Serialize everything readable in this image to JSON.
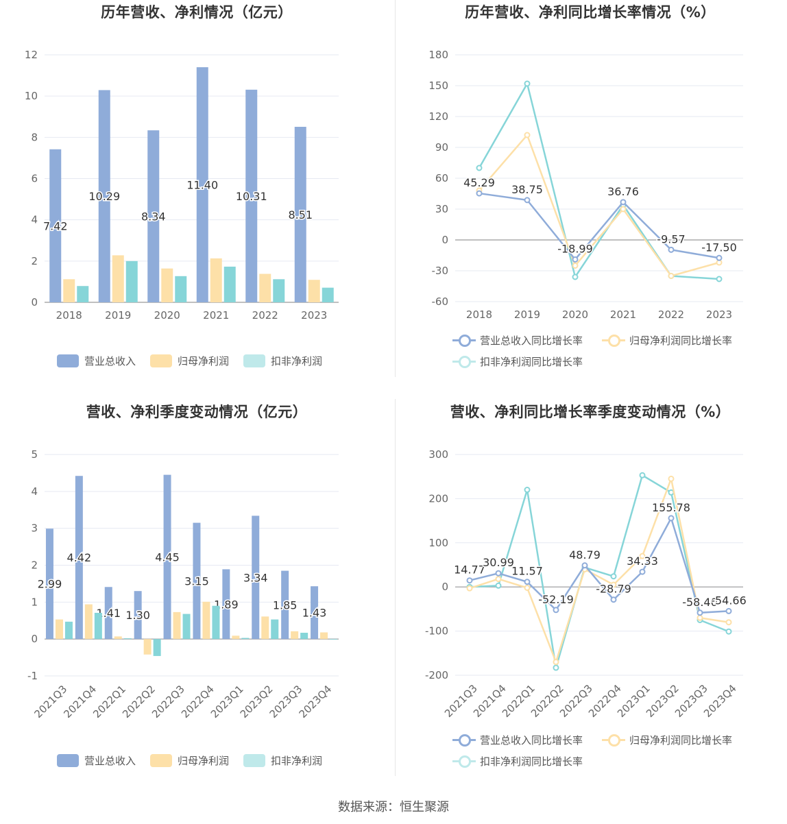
{
  "colors": {
    "revenue": "#8facd9",
    "net_profit": "#fde0a8",
    "deducted_profit": "#7fd3d6",
    "revenue_bar": "#8facd9",
    "net_bar": "#fde0a8",
    "ded_bar": "#86d5d8"
  },
  "footer": {
    "source": "数据来源：恒生聚源"
  },
  "legends": {
    "bar": [
      "营业总收入",
      "归母净利润",
      "扣非净利润"
    ],
    "line": [
      "营业总收入同比增长率",
      "归母净利润同比增长率",
      "扣非净利润同比增长率"
    ]
  },
  "chart_data": [
    {
      "type": "bar",
      "title": "历年营收、净利情况（亿元）",
      "categories": [
        "2018",
        "2019",
        "2020",
        "2021",
        "2022",
        "2023"
      ],
      "ylim": [
        0,
        12
      ],
      "yticks": [
        "0",
        "2",
        "4",
        "6",
        "8",
        "10",
        "12"
      ],
      "series": [
        {
          "name": "营业总收入",
          "values": [
            7.42,
            10.29,
            8.34,
            11.4,
            10.31,
            8.51
          ],
          "labels": [
            "7.42",
            "10.29",
            "8.34",
            "11.40",
            "10.31",
            "8.51"
          ]
        },
        {
          "name": "归母净利润",
          "values": [
            1.12,
            2.28,
            1.64,
            2.13,
            1.38,
            1.09
          ]
        },
        {
          "name": "扣非净利润",
          "values": [
            0.79,
            2.0,
            1.27,
            1.73,
            1.12,
            0.71
          ]
        }
      ],
      "legend_placement": "bottom",
      "grid": true
    },
    {
      "type": "line",
      "title": "历年营收、净利同比增长率情况（%）",
      "categories": [
        "2018",
        "2019",
        "2020",
        "2021",
        "2022",
        "2023"
      ],
      "ylim": [
        -60,
        180
      ],
      "yticks": [
        "-60",
        "-30",
        "0",
        "30",
        "60",
        "90",
        "120",
        "150",
        "180"
      ],
      "series": [
        {
          "name": "营业总收入同比增长率",
          "values": [
            45.29,
            38.75,
            -18.99,
            36.76,
            -9.57,
            -17.5
          ],
          "labels": [
            "45.29",
            "38.75",
            "-18.99",
            "36.76",
            "-9.57",
            "-17.50"
          ]
        },
        {
          "name": "归母净利润同比增长率",
          "values": [
            48,
            102,
            -25,
            30,
            -35,
            -22
          ]
        },
        {
          "name": "扣非净利润同比增长率",
          "values": [
            70,
            152,
            -36,
            34,
            -35,
            -38
          ]
        }
      ],
      "legend_placement": "bottom",
      "grid": true
    },
    {
      "type": "bar",
      "title": "营收、净利季度变动情况（亿元）",
      "categories": [
        "2021Q3",
        "2021Q4",
        "2022Q1",
        "2022Q2",
        "2022Q3",
        "2022Q4",
        "2023Q1",
        "2023Q2",
        "2023Q3",
        "2023Q4"
      ],
      "ylim": [
        -1,
        5
      ],
      "yticks": [
        "-1",
        "0",
        "1",
        "2",
        "3",
        "4",
        "5"
      ],
      "series": [
        {
          "name": "营业总收入",
          "values": [
            2.99,
            4.42,
            1.41,
            1.3,
            4.45,
            3.15,
            1.89,
            3.34,
            1.85,
            1.43
          ],
          "labels": [
            "2.99",
            "4.42",
            "1.41",
            "1.30",
            "4.45",
            "3.15",
            "1.89",
            "3.34",
            "1.85",
            "1.43"
          ]
        },
        {
          "name": "归母净利润",
          "values": [
            0.53,
            0.94,
            0.07,
            -0.42,
            0.73,
            1.01,
            0.09,
            0.61,
            0.21,
            0.18
          ]
        },
        {
          "name": "扣非净利润",
          "values": [
            0.47,
            0.71,
            0.02,
            -0.46,
            0.68,
            0.9,
            0.03,
            0.53,
            0.17,
            0.0
          ]
        }
      ],
      "legend_placement": "bottom",
      "grid": true
    },
    {
      "type": "line",
      "title": "营收、净利同比增长率季度变动情况（%）",
      "categories": [
        "2021Q3",
        "2021Q4",
        "2022Q1",
        "2022Q2",
        "2022Q3",
        "2022Q4",
        "2023Q1",
        "2023Q2",
        "2023Q3",
        "2023Q4"
      ],
      "ylim": [
        -200,
        300
      ],
      "yticks": [
        "-200",
        "-100",
        "0",
        "100",
        "200",
        "300"
      ],
      "series": [
        {
          "name": "营业总收入同比增长率",
          "values": [
            14.77,
            30.99,
            11.57,
            -52.19,
            48.79,
            -28.79,
            34.33,
            155.78,
            -58.4,
            -54.66
          ],
          "labels": [
            "14.77",
            "30.99",
            "11.57",
            "-52.19",
            "48.79",
            "-28.79",
            "34.33",
            "155.78",
            "-58.40",
            "-54.66"
          ]
        },
        {
          "name": "归母净利润同比增长率",
          "values": [
            -3,
            18,
            -2,
            -170,
            40,
            5,
            70,
            245,
            -70,
            -80
          ]
        },
        {
          "name": "扣非净利润同比增长率",
          "values": [
            0,
            3,
            220,
            -183,
            44,
            24,
            253,
            214,
            -75,
            -101
          ]
        }
      ],
      "legend_placement": "bottom",
      "grid": true
    }
  ]
}
